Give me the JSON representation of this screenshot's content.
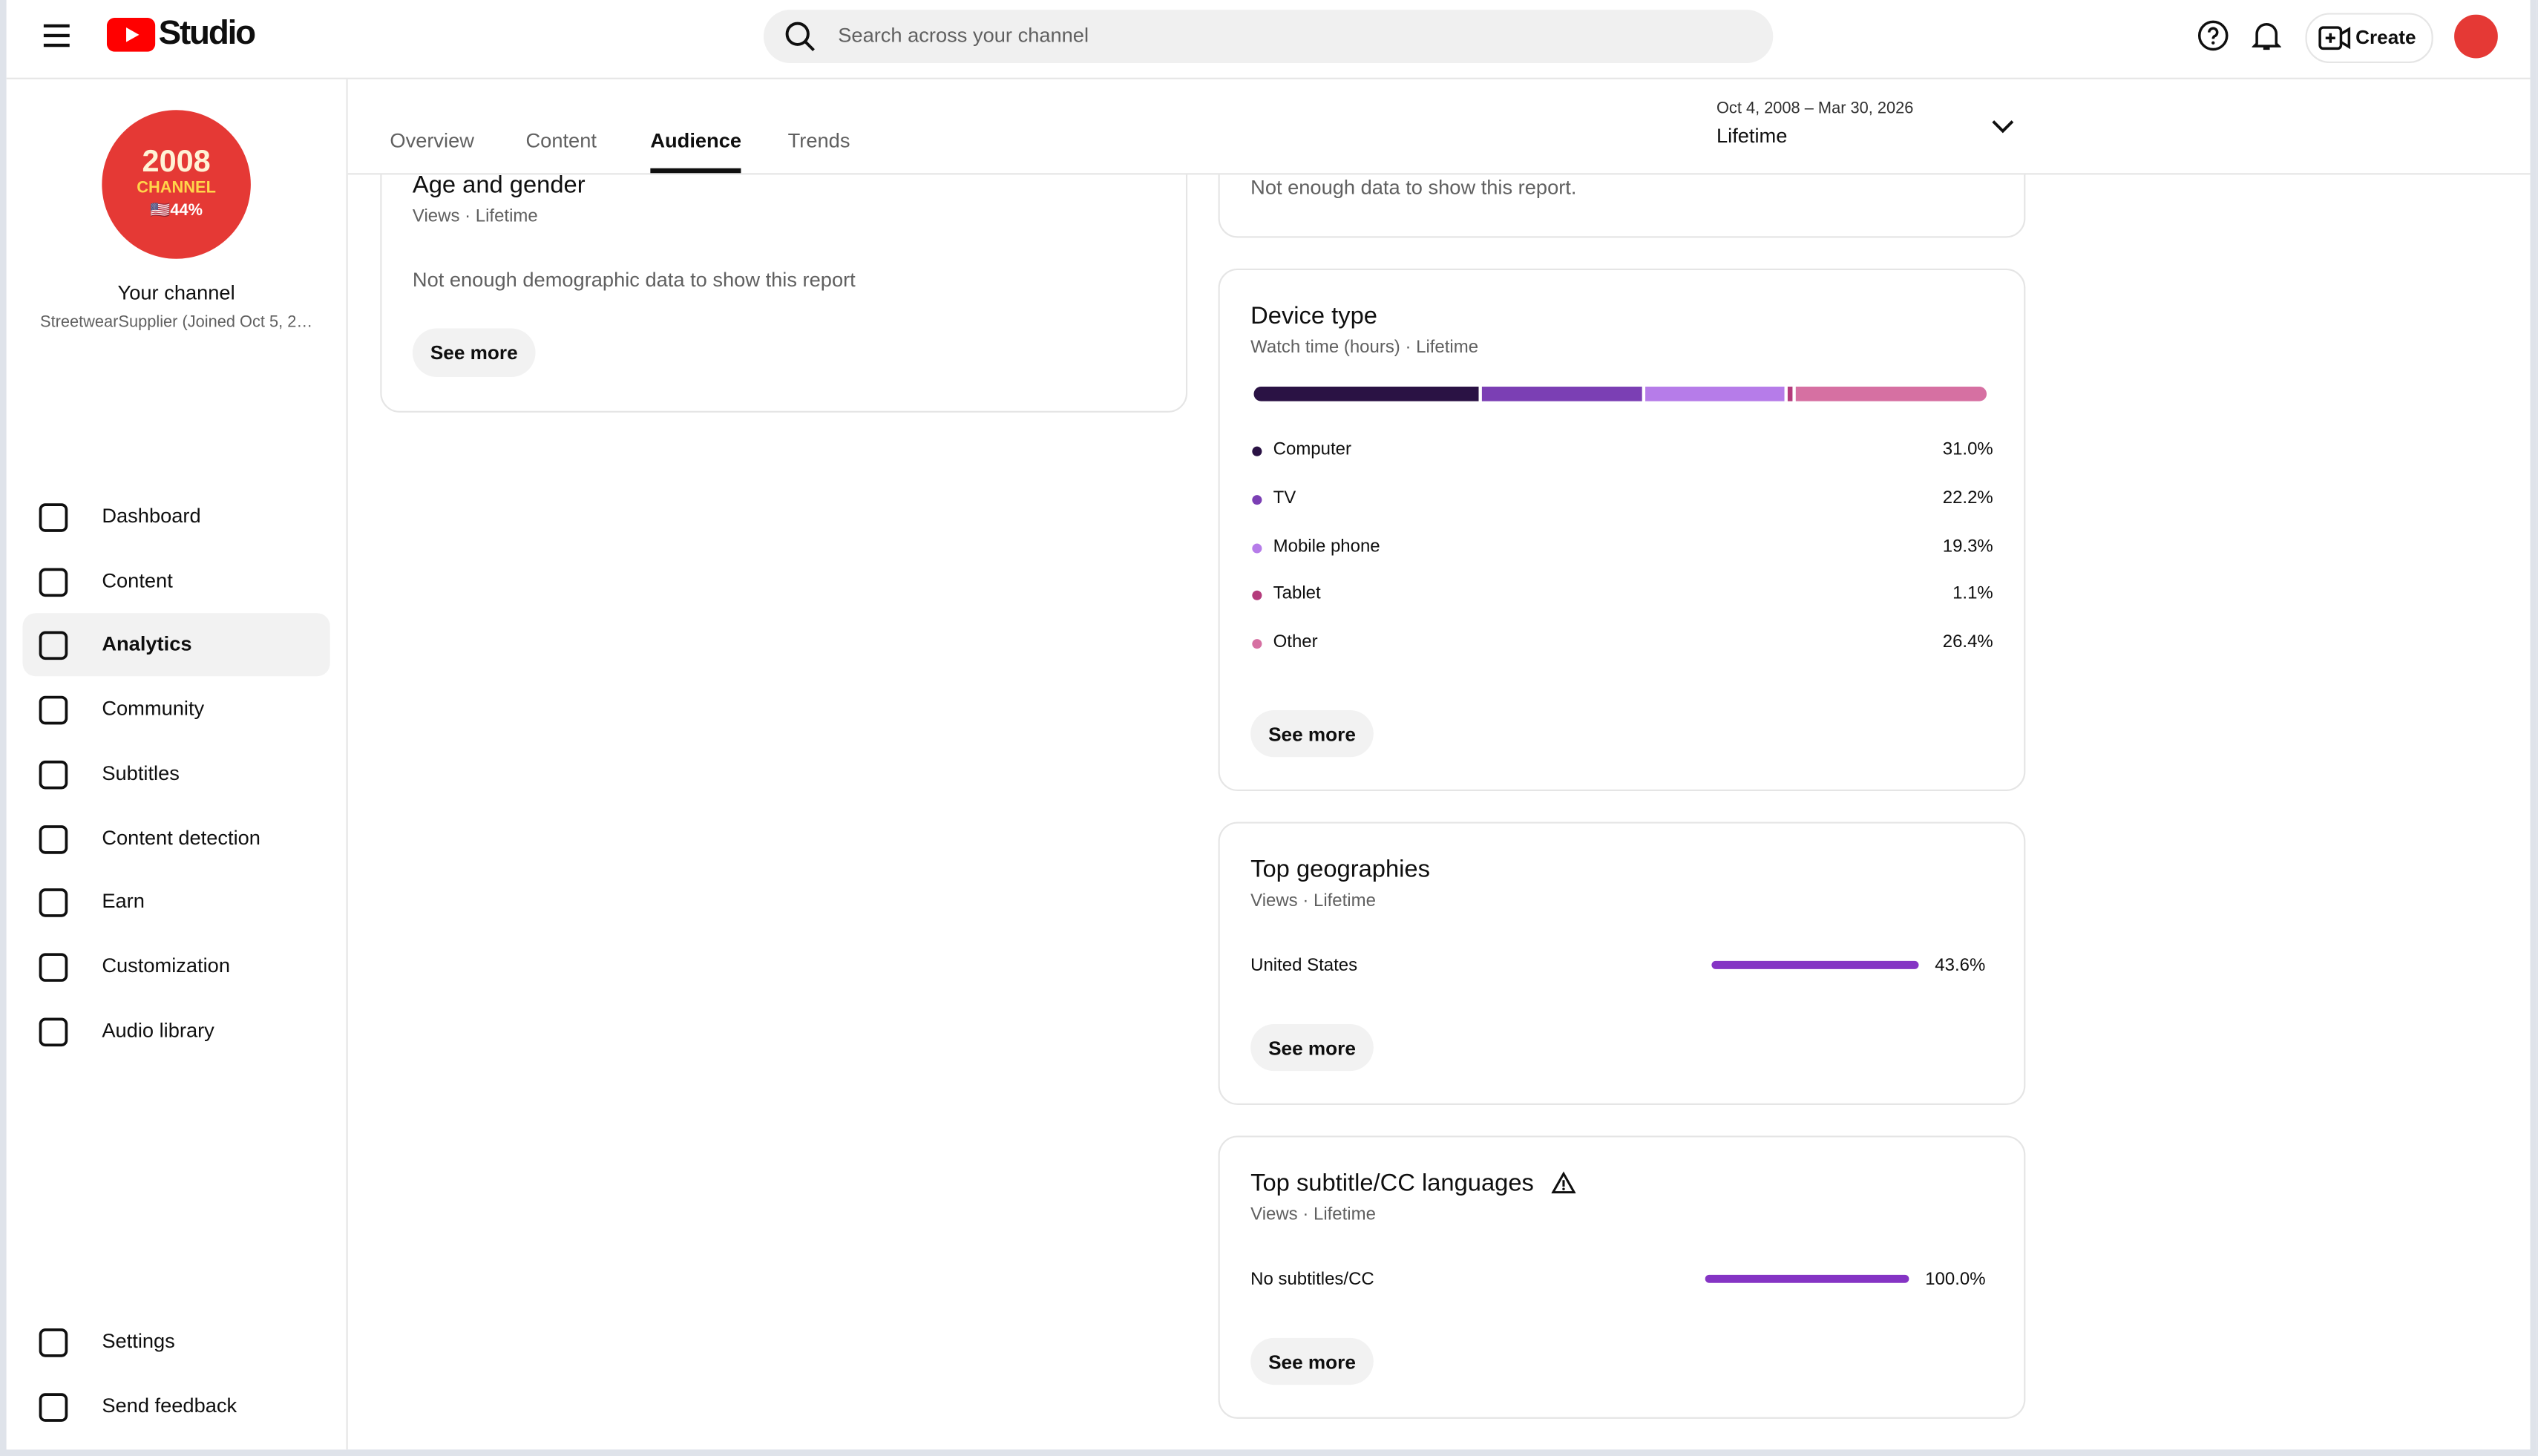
{
  "header": {
    "app_name": "Studio",
    "search_placeholder": "Search across your channel",
    "create_label": "Create"
  },
  "sidebar": {
    "avatar_lines": [
      "2008",
      "CHANNEL",
      "🇺🇸44%"
    ],
    "channel_title": "Your channel",
    "channel_subtitle": "StreetwearSupplier (Joined Oct 5, 2…",
    "nav": [
      {
        "label": "Dashboard",
        "active": false
      },
      {
        "label": "Content",
        "active": false
      },
      {
        "label": "Analytics",
        "active": true
      },
      {
        "label": "Community",
        "active": false
      },
      {
        "label": "Subtitles",
        "active": false
      },
      {
        "label": "Content detection",
        "active": false
      },
      {
        "label": "Earn",
        "active": false
      },
      {
        "label": "Customization",
        "active": false
      },
      {
        "label": "Audio library",
        "active": false
      }
    ],
    "footer_nav": [
      "Settings",
      "Send feedback"
    ]
  },
  "tabs": [
    {
      "label": "Overview",
      "selected": false
    },
    {
      "label": "Content",
      "selected": false
    },
    {
      "label": "Audience",
      "selected": true
    },
    {
      "label": "Trends",
      "selected": false
    }
  ],
  "date_range": {
    "range": "Oct 4, 2008 – Mar 30, 2026",
    "period": "Lifetime"
  },
  "age_gender": {
    "title": "Age and gender",
    "subtitle": "Views · Lifetime",
    "message": "Not enough demographic data to show this report",
    "button": "See more"
  },
  "clipped_card": {
    "message": "Not enough data to show this report."
  },
  "device_type": {
    "title": "Device type",
    "subtitle": "Watch time (hours) · Lifetime",
    "button": "See more",
    "items": [
      {
        "label": "Computer",
        "share": {
          "value": 31.0,
          "label": "31.0%"
        },
        "color": "#2a1244"
      },
      {
        "label": "TV",
        "share": {
          "value": 22.2,
          "label": "22.2%"
        },
        "color": "#7b3fb4"
      },
      {
        "label": "Mobile phone",
        "share": {
          "value": 19.3,
          "label": "19.3%"
        },
        "color": "#b67ce9"
      },
      {
        "label": "Tablet",
        "share": {
          "value": 1.1,
          "label": "1.1%"
        },
        "color": "#b43b7c"
      },
      {
        "label": "Other",
        "share": {
          "value": 26.4,
          "label": "26.4%"
        },
        "color": "#d670a2"
      }
    ]
  },
  "top_geographies": {
    "title": "Top geographies",
    "subtitle": "Views · Lifetime",
    "button": "See more",
    "color": "#8534c4",
    "items": [
      {
        "label": "United States",
        "share": {
          "value": 43.6,
          "label": "43.6%"
        }
      }
    ]
  },
  "top_subtitle_languages": {
    "title": "Top subtitle/CC languages",
    "subtitle": "Views · Lifetime",
    "button": "See more",
    "color": "#8534c4",
    "items": [
      {
        "label": "No subtitles/CC",
        "share": {
          "value": 100.0,
          "label": "100.0%"
        }
      }
    ]
  }
}
